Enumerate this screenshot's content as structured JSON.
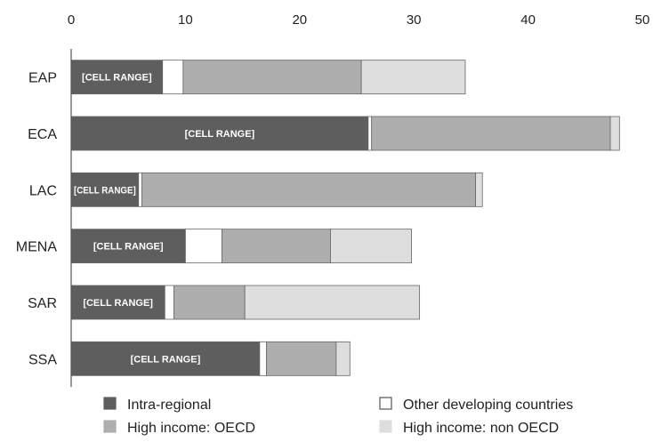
{
  "chart_data": {
    "type": "bar",
    "orientation": "horizontal",
    "stacked": true,
    "categories": [
      "EAP",
      "ECA",
      "LAC",
      "MENA",
      "SAR",
      "SSA"
    ],
    "series": [
      {
        "name": "Intra-regional",
        "color": "#5e5e5e",
        "values": [
          8.0,
          26.0,
          5.9,
          10.0,
          8.2,
          16.5
        ]
      },
      {
        "name": "Other developing countries",
        "color": "#ffffff",
        "values": [
          1.8,
          0.3,
          0.3,
          3.2,
          0.8,
          0.6
        ]
      },
      {
        "name": "High income: OECD",
        "color": "#aeaeae",
        "values": [
          15.6,
          20.9,
          29.2,
          9.5,
          6.2,
          6.1
        ]
      },
      {
        "name": "High income: non OECD",
        "color": "#dedede",
        "values": [
          9.1,
          0.8,
          0.6,
          7.1,
          15.3,
          1.2
        ]
      }
    ],
    "data_labels": [
      "[CELL RANGE]",
      "[CELL RANGE]",
      "[CELL RANGE]",
      "[CELL RANGE]",
      "[CELL RANGE]",
      "[CELL RANGE]"
    ],
    "xticks": [
      "0",
      "10",
      "20",
      "30",
      "40",
      "50"
    ],
    "xlim": [
      0,
      50
    ],
    "x_axis_position": "top",
    "grid": false,
    "legend_position": "bottom",
    "title": "",
    "xlabel": "",
    "ylabel": ""
  }
}
